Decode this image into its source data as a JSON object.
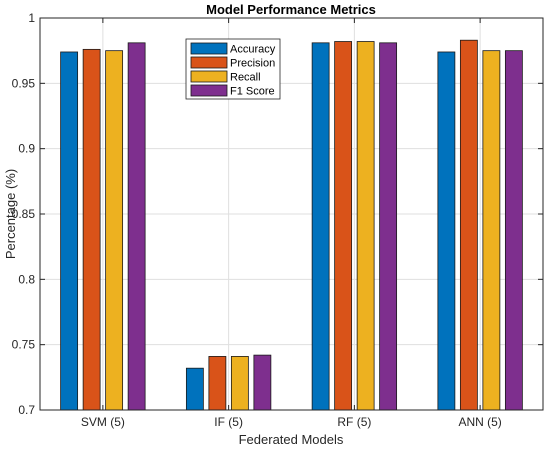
{
  "chart_data": {
    "type": "bar",
    "title": "Model Performance Metrics",
    "xlabel": "Federated Models",
    "ylabel": "Percentage (%)",
    "categories": [
      "SVM (5)",
      "IF (5)",
      "RF (5)",
      "ANN (5)"
    ],
    "series": [
      {
        "name": "Accuracy",
        "color": "#0072BD",
        "values": [
          0.974,
          0.732,
          0.981,
          0.974
        ]
      },
      {
        "name": "Precision",
        "color": "#D95319",
        "values": [
          0.976,
          0.741,
          0.982,
          0.983
        ]
      },
      {
        "name": "Recall",
        "color": "#EDB120",
        "values": [
          0.975,
          0.741,
          0.982,
          0.975
        ]
      },
      {
        "name": "F1 Score",
        "color": "#7E2F8E",
        "values": [
          0.981,
          0.742,
          0.981,
          0.975
        ]
      }
    ],
    "ylim": [
      0.7,
      1.0
    ],
    "yticks": [
      0.7,
      0.75,
      0.8,
      0.85,
      0.9,
      0.95,
      1
    ],
    "ytick_labels": [
      "0.7",
      "0.75",
      "0.8",
      "0.85",
      "0.9",
      "0.95",
      "1"
    ],
    "grid": true,
    "legend_position": "top-left-inside"
  }
}
